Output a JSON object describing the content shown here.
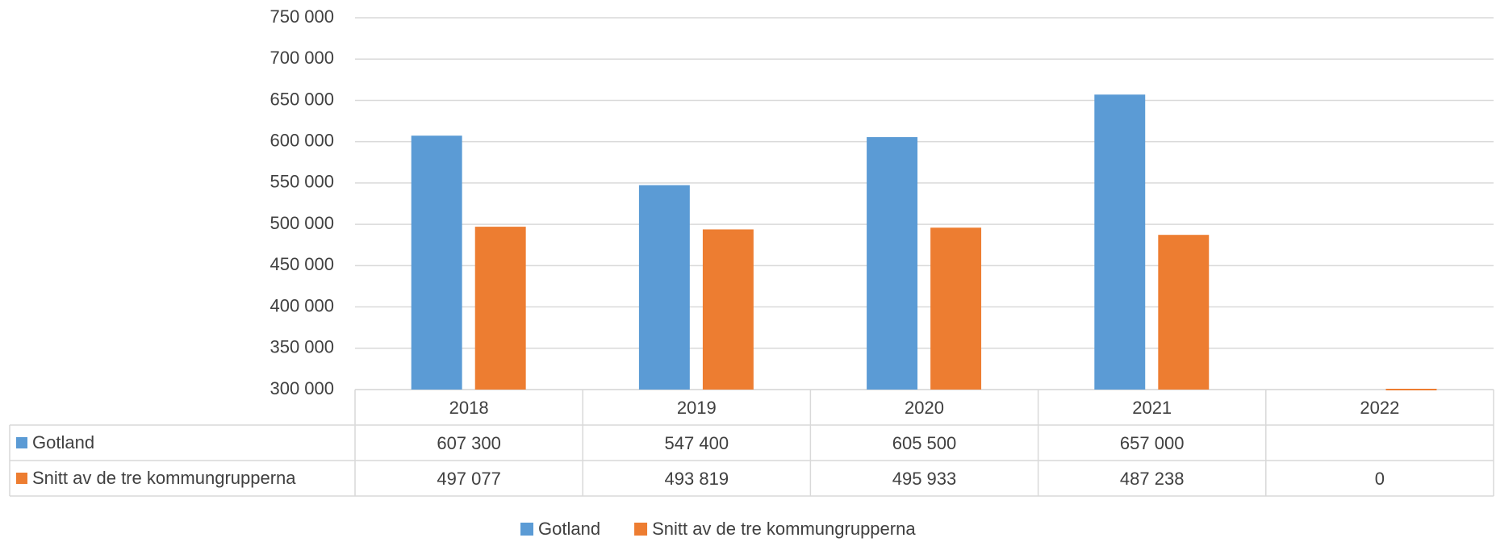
{
  "chart_data": {
    "type": "bar",
    "categories": [
      "2018",
      "2019",
      "2020",
      "2021",
      "2022"
    ],
    "series": [
      {
        "name": "Gotland",
        "color": "#5b9bd5",
        "values": [
          607300,
          547400,
          605500,
          657000,
          null
        ],
        "value_labels": [
          "607 300",
          "547 400",
          "605 500",
          "657 000",
          null
        ]
      },
      {
        "name": "Snitt av de tre kommungrupperna",
        "color": "#ed7d31",
        "values": [
          497077,
          493819,
          495933,
          487238,
          0
        ],
        "value_labels": [
          "497 077",
          "493 819",
          "495 933",
          "487 238",
          "0"
        ]
      }
    ],
    "ylim": [
      300000,
      750000
    ],
    "yticks": [
      {
        "value": 300000,
        "label": "300 000"
      },
      {
        "value": 350000,
        "label": "350 000"
      },
      {
        "value": 400000,
        "label": "400 000"
      },
      {
        "value": 450000,
        "label": "450 000"
      },
      {
        "value": 500000,
        "label": "500 000"
      },
      {
        "value": 550000,
        "label": "550 000"
      },
      {
        "value": 600000,
        "label": "600 000"
      },
      {
        "value": 650000,
        "label": "650 000"
      },
      {
        "value": 700000,
        "label": "700 000"
      },
      {
        "value": 750000,
        "label": "750 000"
      }
    ],
    "grid": true,
    "legend": "bottom"
  }
}
